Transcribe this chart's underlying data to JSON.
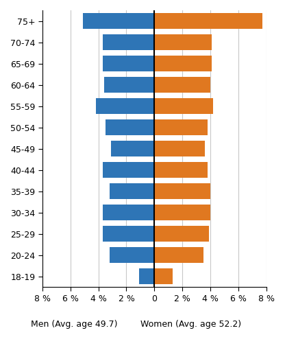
{
  "age_groups": [
    "75+",
    "70-74",
    "65-69",
    "60-64",
    "55-59",
    "50-54",
    "45-49",
    "40-44",
    "35-39",
    "30-34",
    "25-29",
    "20-24",
    "18-19"
  ],
  "men_values": [
    -5.1,
    -3.7,
    -3.7,
    -3.6,
    -4.2,
    -3.5,
    -3.1,
    -3.7,
    -3.2,
    -3.7,
    -3.7,
    -3.2,
    -1.1
  ],
  "women_values": [
    7.7,
    4.1,
    4.1,
    4.0,
    4.2,
    3.8,
    3.6,
    3.8,
    4.0,
    4.0,
    3.9,
    3.5,
    1.3
  ],
  "men_color": "#2E75B6",
  "women_color": "#E07820",
  "xlim": [
    -8,
    8
  ],
  "xticks": [
    -8,
    -6,
    -4,
    -2,
    0,
    2,
    4,
    6,
    8
  ],
  "xtick_labels": [
    "8 %",
    "6 %",
    "4 %",
    "2 %",
    "0",
    "2 %",
    "4 %",
    "6 %",
    "8 %"
  ],
  "men_label": "Men (Avg. age 49.7)",
  "women_label": "Women (Avg. age 52.2)",
  "background_color": "#FFFFFF",
  "grid_color": "#C8C8C8",
  "bar_height": 0.75,
  "label_fontsize": 9,
  "tick_fontsize": 9
}
